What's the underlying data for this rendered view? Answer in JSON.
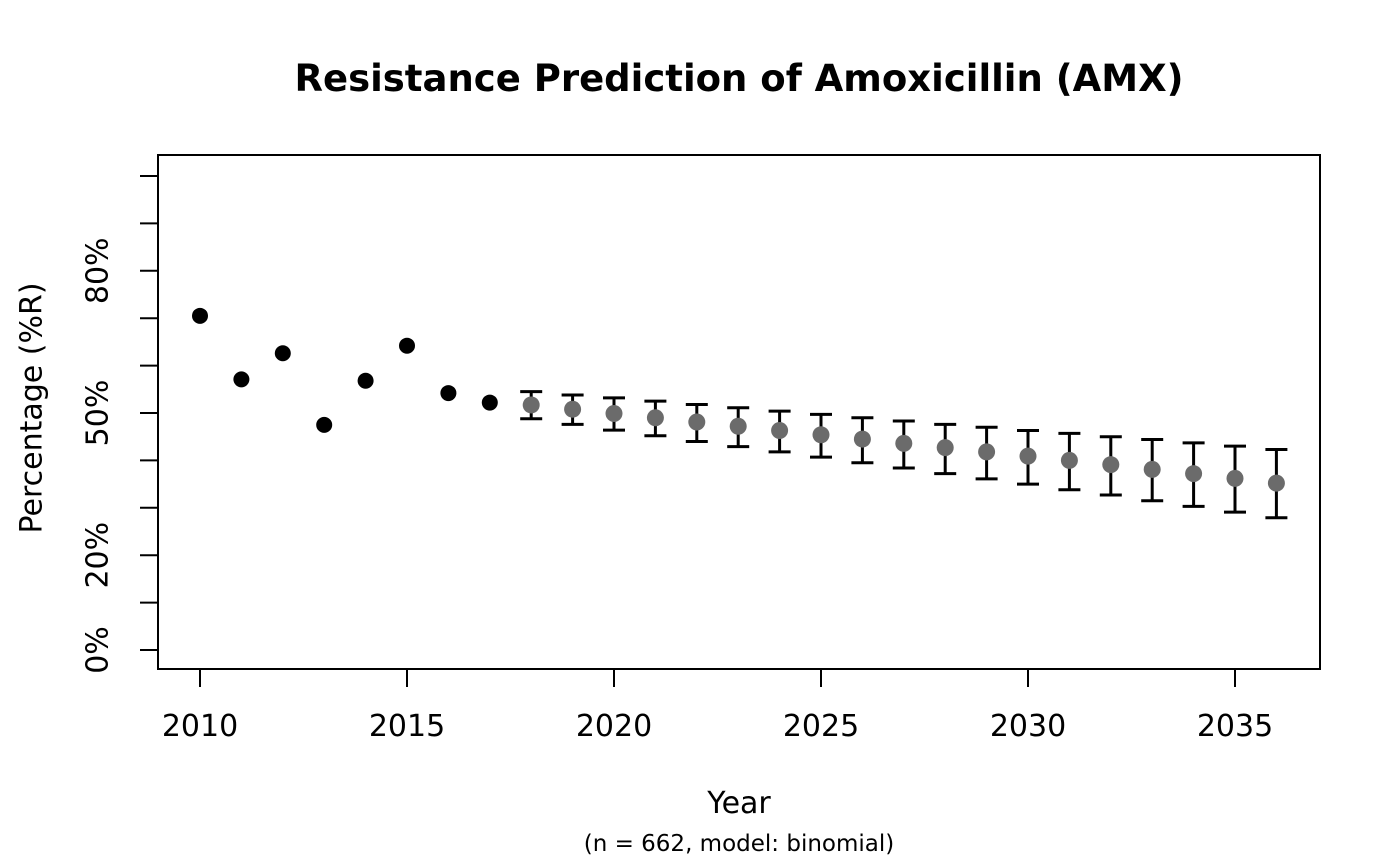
{
  "page": {
    "background": "#ffffff"
  },
  "chart_data": {
    "type": "scatter",
    "title": "Resistance Prediction of Amoxicillin (AMX)",
    "xlabel": "Year",
    "xlabel_note": "(n = 662, model: binomial)",
    "ylabel": "Percentage (%R)",
    "x_ticks": [
      2010,
      2015,
      2020,
      2025,
      2030,
      2035
    ],
    "y_ticks": [
      0,
      10,
      20,
      30,
      40,
      50,
      60,
      70,
      80,
      90,
      100
    ],
    "y_tick_labels": {
      "0": "0%",
      "20": "20%",
      "50": "50%",
      "80": "80%"
    },
    "xlim": [
      2009,
      2037
    ],
    "ylim": [
      0,
      100
    ],
    "grid": false,
    "legend": "none",
    "colors": {
      "observed": "#000000",
      "predicted": "#6b6b6b",
      "error_bar": "#000000",
      "axis": "#000000"
    },
    "series": [
      {
        "name": "observed",
        "marker": "filled-circle",
        "x": [
          2010,
          2011,
          2012,
          2013,
          2014,
          2015,
          2016,
          2017
        ],
        "y": [
          70.5,
          57.1,
          62.6,
          47.5,
          56.8,
          64.2,
          54.2,
          52.2
        ]
      },
      {
        "name": "predicted",
        "marker": "filled-circle-with-error-bars",
        "x": [
          2018,
          2019,
          2020,
          2021,
          2022,
          2023,
          2024,
          2025,
          2026,
          2027,
          2028,
          2029,
          2030,
          2031,
          2032,
          2033,
          2034,
          2035,
          2036
        ],
        "y": [
          51.7,
          50.8,
          49.9,
          49.0,
          48.1,
          47.2,
          46.3,
          45.4,
          44.5,
          43.6,
          42.7,
          41.8,
          40.9,
          40.0,
          39.1,
          38.1,
          37.2,
          36.2,
          35.2
        ],
        "ci_low": [
          48.8,
          47.6,
          46.4,
          45.2,
          44.0,
          42.9,
          41.8,
          40.7,
          39.5,
          38.4,
          37.2,
          36.1,
          35.0,
          33.8,
          32.7,
          31.5,
          30.3,
          29.1,
          27.9
        ],
        "ci_high": [
          54.5,
          53.8,
          53.2,
          52.5,
          51.8,
          51.1,
          50.4,
          49.7,
          49.0,
          48.3,
          47.6,
          47.0,
          46.3,
          45.7,
          45.0,
          44.4,
          43.7,
          43.0,
          42.3
        ]
      }
    ]
  }
}
